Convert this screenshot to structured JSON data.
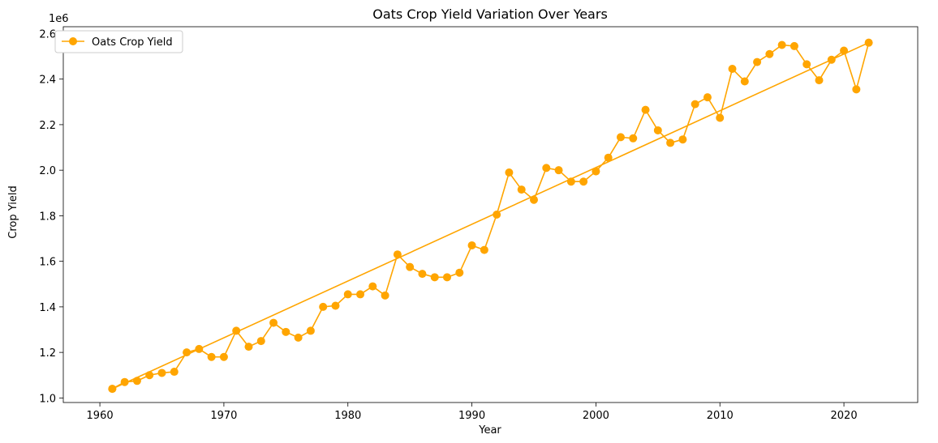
{
  "chart_data": {
    "type": "line",
    "title": "Oats Crop Yield Variation Over Years",
    "xlabel": "Year",
    "ylabel": "Crop Yield",
    "y_offset_text": "1e6",
    "xlim": [
      1957.05,
      1925.95
    ],
    "ylim": [
      0.98,
      2.63
    ],
    "xlim_data": [
      1957.05,
      2025.95
    ],
    "x_ticks": [
      1960,
      1970,
      1980,
      1990,
      2000,
      2010,
      2020
    ],
    "y_ticks": [
      1.0,
      1.2,
      1.4,
      1.6,
      1.8,
      2.0,
      2.2,
      2.4,
      2.6
    ],
    "grid": false,
    "legend_position": "top-left",
    "color": "#FFA500",
    "series": [
      {
        "name": "Oats Crop Yield",
        "x": [
          1961,
          1962,
          1963,
          1964,
          1965,
          1966,
          1967,
          1968,
          1969,
          1970,
          1971,
          1972,
          1973,
          1974,
          1975,
          1976,
          1977,
          1978,
          1979,
          1980,
          1981,
          1982,
          1983,
          1984,
          1985,
          1986,
          1987,
          1988,
          1989,
          1990,
          1991,
          1992,
          1993,
          1994,
          1995,
          1996,
          1997,
          1998,
          1999,
          2000,
          2001,
          2002,
          2003,
          2004,
          2005,
          2006,
          2007,
          2008,
          2009,
          2010,
          2011,
          2012,
          2013,
          2014,
          2015,
          2016,
          2017,
          2018,
          2019,
          2020,
          2021,
          2022,
          1961
        ],
        "y": [
          1.04,
          1.07,
          1.075,
          1.1,
          1.11,
          1.115,
          1.2,
          1.215,
          1.18,
          1.18,
          1.295,
          1.225,
          1.25,
          1.33,
          1.29,
          1.265,
          1.295,
          1.4,
          1.405,
          1.455,
          1.455,
          1.49,
          1.45,
          1.63,
          1.575,
          1.545,
          1.53,
          1.53,
          1.55,
          1.67,
          1.65,
          1.805,
          1.99,
          1.915,
          1.87,
          2.01,
          2.0,
          1.95,
          1.95,
          1.995,
          2.055,
          2.145,
          2.14,
          2.265,
          2.175,
          2.12,
          2.135,
          2.29,
          2.32,
          2.23,
          2.445,
          2.39,
          2.475,
          2.51,
          2.55,
          2.545,
          2.465,
          2.395,
          2.485,
          2.525,
          2.355,
          2.56,
          1.04
        ]
      }
    ]
  }
}
